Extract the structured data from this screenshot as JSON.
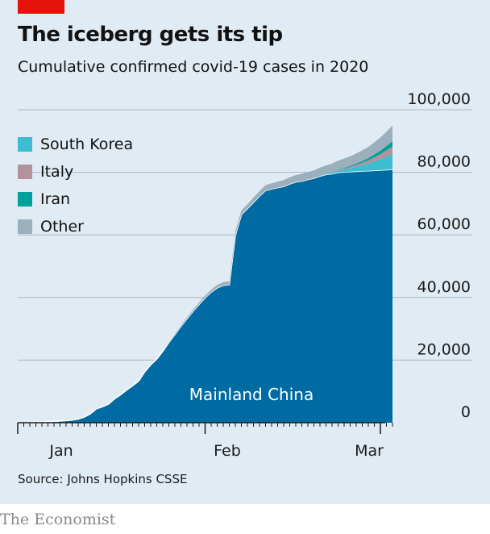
{
  "header": {
    "title": "The iceberg gets its tip",
    "subtitle": "Cumulative confirmed covid-19 cases in 2020"
  },
  "footer": {
    "source": "Source: Johns Hopkins CSSE",
    "brand": "The Economist"
  },
  "colors": {
    "background": "#e1ebf3",
    "accent": "#e3120b",
    "china": "#006ba2",
    "south_korea": "#3ebcd2",
    "italy": "#b3929c",
    "iran": "#00a19a",
    "other": "#9bafbc",
    "grid": "#a8b6c1"
  },
  "chart_data": {
    "type": "area",
    "stacked": true,
    "x_ticks": [
      "Jan",
      "Feb",
      "Mar"
    ],
    "ylim": [
      0,
      100000
    ],
    "y_ticks": [
      "100,000",
      "80,000",
      "60,000",
      "40,000",
      "20,000",
      "0"
    ],
    "annotation": "Mainland China",
    "legend": [
      "South Korea",
      "Italy",
      "Iran",
      "Other"
    ],
    "days": [
      "2020-01-01",
      "2020-01-02",
      "2020-01-03",
      "2020-01-04",
      "2020-01-05",
      "2020-01-06",
      "2020-01-07",
      "2020-01-08",
      "2020-01-09",
      "2020-01-10",
      "2020-01-11",
      "2020-01-12",
      "2020-01-13",
      "2020-01-14",
      "2020-01-15",
      "2020-01-16",
      "2020-01-17",
      "2020-01-18",
      "2020-01-19",
      "2020-01-20",
      "2020-01-21",
      "2020-01-22",
      "2020-01-23",
      "2020-01-24",
      "2020-01-25",
      "2020-01-26",
      "2020-01-27",
      "2020-01-28",
      "2020-01-29",
      "2020-01-30",
      "2020-01-31",
      "2020-02-01",
      "2020-02-02",
      "2020-02-03",
      "2020-02-04",
      "2020-02-05",
      "2020-02-06",
      "2020-02-07",
      "2020-02-08",
      "2020-02-09",
      "2020-02-10",
      "2020-02-11",
      "2020-02-12",
      "2020-02-13",
      "2020-02-14",
      "2020-02-15",
      "2020-02-16",
      "2020-02-17",
      "2020-02-18",
      "2020-02-19",
      "2020-02-20",
      "2020-02-21",
      "2020-02-22",
      "2020-02-23",
      "2020-02-24",
      "2020-02-25",
      "2020-02-26",
      "2020-02-27",
      "2020-02-28",
      "2020-02-29",
      "2020-03-01",
      "2020-03-02",
      "2020-03-03"
    ],
    "series": [
      {
        "name": "Mainland China",
        "values": [
          0,
          40,
          100,
          170,
          250,
          330,
          420,
          520,
          650,
          850,
          1150,
          1800,
          2800,
          4400,
          5100,
          5900,
          7600,
          8900,
          10400,
          11800,
          13300,
          16200,
          18500,
          20300,
          22800,
          25600,
          28200,
          30800,
          33200,
          35600,
          37800,
          39900,
          41700,
          43100,
          43900,
          44100,
          59800,
          66500,
          68400,
          70400,
          72400,
          74200,
          74700,
          75100,
          75500,
          76300,
          76900,
          77200,
          77700,
          78100,
          78800,
          79300,
          79500,
          79900,
          80100,
          80200,
          80300,
          80400,
          80500,
          80600,
          80700,
          80800,
          80900
        ]
      },
      {
        "name": "South Korea",
        "values": [
          0,
          0,
          0,
          0,
          0,
          0,
          0,
          0,
          0,
          0,
          0,
          0,
          0,
          0,
          0,
          0,
          0,
          0,
          0,
          0,
          0,
          0,
          0,
          0,
          0,
          0,
          0,
          0,
          0,
          0,
          0,
          0,
          0,
          0,
          0,
          0,
          0,
          0,
          0,
          0,
          0,
          0,
          0,
          0,
          0,
          0,
          0,
          0,
          0,
          30,
          100,
          200,
          400,
          600,
          800,
          1100,
          1500,
          1900,
          2300,
          2900,
          3500,
          4200,
          5000
        ]
      },
      {
        "name": "Italy",
        "values": [
          0,
          0,
          0,
          0,
          0,
          0,
          0,
          0,
          0,
          0,
          0,
          0,
          0,
          0,
          0,
          0,
          0,
          0,
          0,
          0,
          0,
          0,
          0,
          0,
          0,
          0,
          0,
          0,
          0,
          0,
          0,
          0,
          0,
          0,
          0,
          0,
          0,
          0,
          0,
          0,
          0,
          0,
          0,
          0,
          0,
          0,
          0,
          0,
          0,
          0,
          0,
          0,
          100,
          200,
          300,
          400,
          600,
          800,
          1000,
          1300,
          1600,
          2000,
          2300
        ]
      },
      {
        "name": "Iran",
        "values": [
          0,
          0,
          0,
          0,
          0,
          0,
          0,
          0,
          0,
          0,
          0,
          0,
          0,
          0,
          0,
          0,
          0,
          0,
          0,
          0,
          0,
          0,
          0,
          0,
          0,
          0,
          0,
          0,
          0,
          0,
          0,
          0,
          0,
          0,
          0,
          0,
          0,
          0,
          0,
          0,
          0,
          0,
          0,
          0,
          0,
          0,
          0,
          0,
          0,
          0,
          0,
          0,
          0,
          100,
          200,
          300,
          400,
          500,
          700,
          900,
          1100,
          1400,
          1700
        ]
      },
      {
        "name": "Other",
        "values": [
          0,
          0,
          0,
          0,
          0,
          0,
          0,
          0,
          0,
          0,
          0,
          0,
          0,
          0,
          0,
          0,
          0,
          0,
          0,
          0,
          0,
          0,
          0,
          0,
          0,
          100,
          200,
          300,
          400,
          500,
          600,
          700,
          800,
          900,
          1000,
          1100,
          1200,
          1300,
          1400,
          1500,
          1600,
          1700,
          1800,
          1900,
          2000,
          2100,
          2200,
          2300,
          2400,
          2500,
          2600,
          2700,
          2800,
          2900,
          3000,
          3100,
          3200,
          3400,
          3600,
          3900,
          4200,
          4600,
          5000
        ]
      }
    ]
  }
}
